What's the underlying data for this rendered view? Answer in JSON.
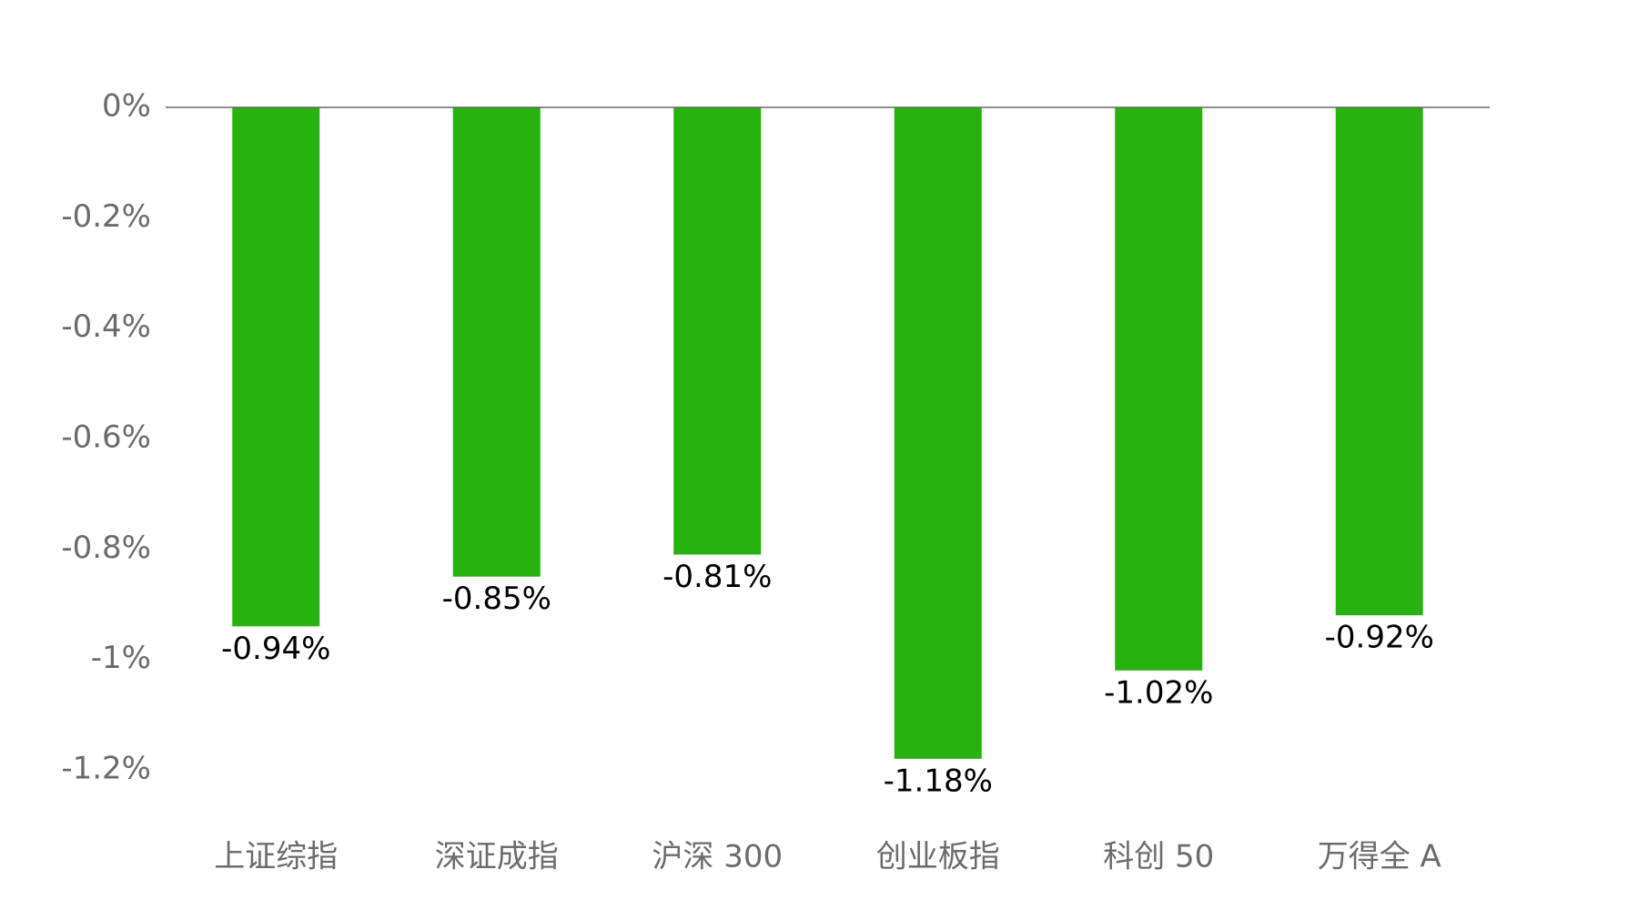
{
  "chart_data": {
    "type": "bar",
    "categories": [
      "上证综指",
      "深证成指",
      "沪深 300",
      "创业板指",
      "科创 50",
      "万得全 A"
    ],
    "values": [
      -0.94,
      -0.85,
      -0.81,
      -1.18,
      -1.02,
      -0.92
    ],
    "value_labels": [
      "-0.94%",
      "-0.85%",
      "-0.81%",
      "-1.18%",
      "-1.02%",
      "-0.92%"
    ],
    "color": "#27b20f",
    "ylim": [
      -1.2,
      0
    ],
    "yticks": [
      {
        "value": 0,
        "label": "0%"
      },
      {
        "value": -0.2,
        "label": "-0.2%"
      },
      {
        "value": -0.4,
        "label": "-0.4%"
      },
      {
        "value": -0.6,
        "label": "-0.6%"
      },
      {
        "value": -0.8,
        "label": "-0.8%"
      },
      {
        "value": -1,
        "label": "-1%"
      },
      {
        "value": -1.2,
        "label": "-1.2%"
      }
    ],
    "grid": false
  }
}
